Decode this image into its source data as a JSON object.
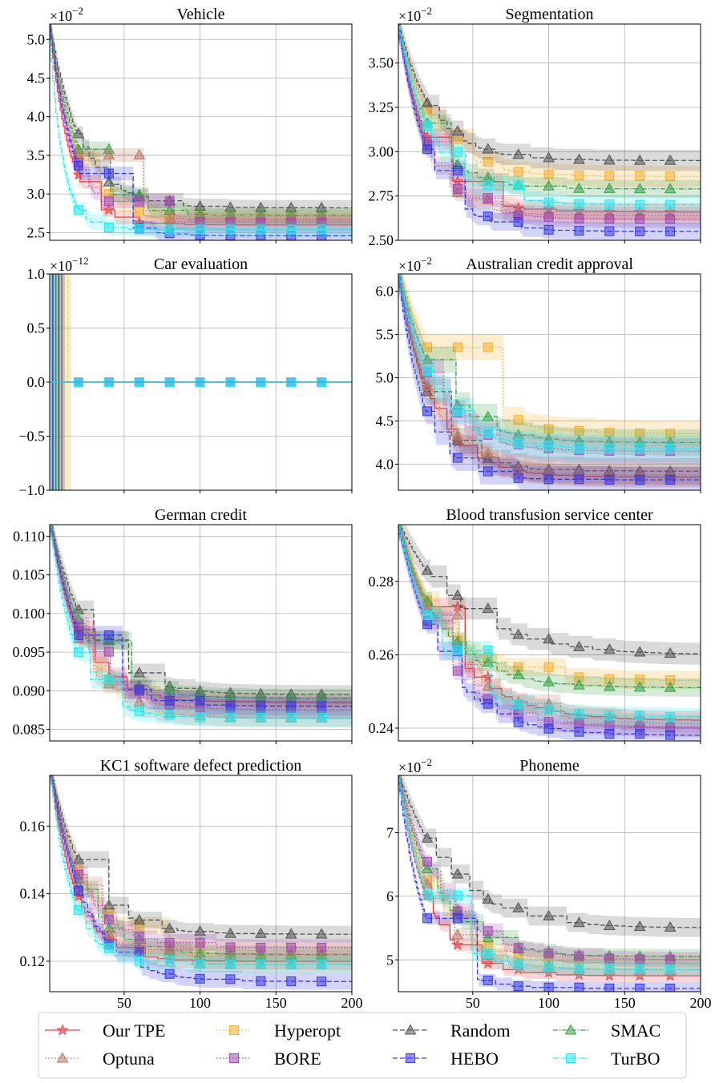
{
  "figure": {
    "legend": [
      {
        "name": "Our TPE",
        "color": "#e8454a",
        "marker": "star",
        "dash": "solid"
      },
      {
        "name": "Hyperopt",
        "color": "#f5b031",
        "marker": "square",
        "dash": "dot"
      },
      {
        "name": "Random",
        "color": "#555555",
        "marker": "triangle",
        "dash": "dash"
      },
      {
        "name": "SMAC",
        "color": "#3ea14a",
        "marker": "triangle",
        "dash": "dashdot"
      },
      {
        "name": "Optuna",
        "color": "#b87a6a",
        "marker": "triangle",
        "dash": "dot"
      },
      {
        "name": "BORE",
        "color": "#a44ab0",
        "marker": "square",
        "dash": "dot"
      },
      {
        "name": "HEBO",
        "color": "#3a3ae0",
        "marker": "square",
        "dash": "dash"
      },
      {
        "name": "TurBO",
        "color": "#28e8ee",
        "marker": "square",
        "dash": "dashdot"
      }
    ],
    "xticks": [
      "50",
      "100",
      "150",
      "200"
    ]
  },
  "chart_data": [
    {
      "type": "line",
      "title": "Vehicle",
      "exponent": "×10",
      "exponent_power": "−2",
      "xlim": [
        1,
        200
      ],
      "ylim": [
        2.4,
        5.2
      ],
      "yticks": [
        2.5,
        3.0,
        3.5,
        4.0,
        4.5,
        5.0
      ],
      "ytick_labels": [
        "2.5",
        "3.0",
        "3.5",
        "4.0",
        "4.5",
        "5.0"
      ],
      "series": [
        {
          "name": "Our TPE",
          "start": 5.3,
          "end": 2.6,
          "k": 0.075,
          "band": 0.09
        },
        {
          "name": "Hyperopt",
          "start": 5.3,
          "end": 2.7,
          "k": 0.06,
          "band": 0.1
        },
        {
          "name": "Random",
          "start": 5.3,
          "end": 2.82,
          "k": 0.05,
          "band": 0.1
        },
        {
          "name": "SMAC",
          "start": 5.3,
          "end": 2.72,
          "k": 0.055,
          "band": 0.1
        },
        {
          "name": "Optuna",
          "start": 5.3,
          "end": 2.66,
          "k": 0.06,
          "band": 0.09
        },
        {
          "name": "BORE",
          "start": 5.3,
          "end": 2.63,
          "k": 0.065,
          "band": 0.09
        },
        {
          "name": "HEBO",
          "start": 5.3,
          "end": 2.46,
          "k": 0.06,
          "band": 0.09
        },
        {
          "name": "TurBO",
          "start": 5.3,
          "end": 2.54,
          "k": 0.12,
          "band": 0.1
        }
      ]
    },
    {
      "type": "line",
      "title": "Segmentation",
      "exponent": "×10",
      "exponent_power": "−2",
      "xlim": [
        1,
        200
      ],
      "ylim": [
        2.5,
        3.72
      ],
      "yticks": [
        2.5,
        2.75,
        3.0,
        3.25,
        3.5
      ],
      "ytick_labels": [
        "2.50",
        "2.75",
        "3.00",
        "3.25",
        "3.50"
      ],
      "series": [
        {
          "name": "Our TPE",
          "start": 3.75,
          "end": 2.66,
          "k": 0.05,
          "band": 0.05
        },
        {
          "name": "Hyperopt",
          "start": 3.75,
          "end": 2.86,
          "k": 0.045,
          "band": 0.06
        },
        {
          "name": "Random",
          "start": 3.75,
          "end": 2.95,
          "k": 0.045,
          "band": 0.06
        },
        {
          "name": "SMAC",
          "start": 3.75,
          "end": 2.79,
          "k": 0.05,
          "band": 0.05
        },
        {
          "name": "Optuna",
          "start": 3.75,
          "end": 2.64,
          "k": 0.055,
          "band": 0.05
        },
        {
          "name": "BORE",
          "start": 3.75,
          "end": 2.62,
          "k": 0.05,
          "band": 0.05
        },
        {
          "name": "HEBO",
          "start": 3.75,
          "end": 2.55,
          "k": 0.05,
          "band": 0.05
        },
        {
          "name": "TurBO",
          "start": 3.75,
          "end": 2.7,
          "k": 0.045,
          "band": 0.05
        }
      ]
    },
    {
      "type": "line",
      "title": "Car evaluation",
      "exponent": "×10",
      "exponent_power": "−12",
      "xlim": [
        1,
        200
      ],
      "ylim": [
        -1.0,
        1.0
      ],
      "yticks": [
        -1.0,
        -0.5,
        0.0,
        0.5,
        1.0
      ],
      "ytick_labels": [
        "−1.0",
        "−0.5",
        "0.0",
        "0.5",
        "1.0"
      ],
      "series": [
        {
          "name": "Our TPE",
          "start": 0,
          "end": 0,
          "k": 1,
          "band": 0
        },
        {
          "name": "Hyperopt",
          "start": 0,
          "end": 0,
          "k": 1,
          "band": 0
        },
        {
          "name": "Random",
          "start": 0,
          "end": 0,
          "k": 1,
          "band": 0
        },
        {
          "name": "SMAC",
          "start": 0,
          "end": 0,
          "k": 1,
          "band": 0
        },
        {
          "name": "Optuna",
          "start": 0,
          "end": 0,
          "k": 1,
          "band": 0
        },
        {
          "name": "BORE",
          "start": 0,
          "end": 0,
          "k": 1,
          "band": 0
        },
        {
          "name": "HEBO",
          "start": 0,
          "end": 0,
          "k": 1,
          "band": 0
        },
        {
          "name": "TurBO",
          "start": 0,
          "end": 0,
          "k": 1,
          "band": 0
        }
      ]
    },
    {
      "type": "line",
      "title": "Australian credit approval",
      "exponent": "×10",
      "exponent_power": "−2",
      "xlim": [
        1,
        200
      ],
      "ylim": [
        3.7,
        6.2
      ],
      "yticks": [
        4.0,
        4.5,
        5.0,
        5.5,
        6.0
      ],
      "ytick_labels": [
        "4.0",
        "4.5",
        "5.0",
        "5.5",
        "6.0"
      ],
      "series": [
        {
          "name": "Our TPE",
          "start": 6.3,
          "end": 3.85,
          "k": 0.045,
          "band": 0.12
        },
        {
          "name": "Hyperopt",
          "start": 6.3,
          "end": 4.35,
          "k": 0.035,
          "band": 0.15
        },
        {
          "name": "Random",
          "start": 6.3,
          "end": 3.92,
          "k": 0.05,
          "band": 0.15
        },
        {
          "name": "SMAC",
          "start": 6.3,
          "end": 4.25,
          "k": 0.04,
          "band": 0.15
        },
        {
          "name": "Optuna",
          "start": 6.3,
          "end": 3.87,
          "k": 0.045,
          "band": 0.12
        },
        {
          "name": "BORE",
          "start": 6.3,
          "end": 4.15,
          "k": 0.045,
          "band": 0.15
        },
        {
          "name": "HEBO",
          "start": 6.3,
          "end": 3.82,
          "k": 0.06,
          "band": 0.15
        },
        {
          "name": "TurBO",
          "start": 6.3,
          "end": 4.18,
          "k": 0.045,
          "band": 0.15
        }
      ]
    },
    {
      "type": "line",
      "title": "German credit",
      "exponent": "",
      "exponent_power": "",
      "xlim": [
        1,
        200
      ],
      "ylim": [
        0.0835,
        0.1115
      ],
      "yticks": [
        0.085,
        0.09,
        0.095,
        0.1,
        0.105,
        0.11
      ],
      "ytick_labels": [
        "0.085",
        "0.090",
        "0.095",
        "0.100",
        "0.105",
        "0.110"
      ],
      "series": [
        {
          "name": "Our TPE",
          "start": 0.113,
          "end": 0.0885,
          "k": 0.05,
          "band": 0.0012
        },
        {
          "name": "Hyperopt",
          "start": 0.113,
          "end": 0.0875,
          "k": 0.05,
          "band": 0.0012
        },
        {
          "name": "Random",
          "start": 0.113,
          "end": 0.0895,
          "k": 0.04,
          "band": 0.0012
        },
        {
          "name": "SMAC",
          "start": 0.113,
          "end": 0.089,
          "k": 0.045,
          "band": 0.0012
        },
        {
          "name": "Optuna",
          "start": 0.113,
          "end": 0.0865,
          "k": 0.05,
          "band": 0.0012
        },
        {
          "name": "BORE",
          "start": 0.113,
          "end": 0.0875,
          "k": 0.045,
          "band": 0.0012
        },
        {
          "name": "HEBO",
          "start": 0.113,
          "end": 0.088,
          "k": 0.05,
          "band": 0.0012
        },
        {
          "name": "TurBO",
          "start": 0.113,
          "end": 0.0865,
          "k": 0.06,
          "band": 0.0012
        }
      ]
    },
    {
      "type": "line",
      "title": "Blood transfusion service center",
      "exponent": "",
      "exponent_power": "",
      "xlim": [
        1,
        200
      ],
      "ylim": [
        0.2365,
        0.2955
      ],
      "yticks": [
        0.24,
        0.26,
        0.28
      ],
      "ytick_labels": [
        "0.24",
        "0.26",
        "0.28"
      ],
      "series": [
        {
          "name": "Our TPE",
          "start": 0.297,
          "end": 0.242,
          "k": 0.03,
          "band": 0.0025
        },
        {
          "name": "Hyperopt",
          "start": 0.297,
          "end": 0.253,
          "k": 0.035,
          "band": 0.0025
        },
        {
          "name": "Random",
          "start": 0.297,
          "end": 0.26,
          "k": 0.025,
          "band": 0.003
        },
        {
          "name": "SMAC",
          "start": 0.297,
          "end": 0.251,
          "k": 0.035,
          "band": 0.0025
        },
        {
          "name": "Optuna",
          "start": 0.297,
          "end": 0.241,
          "k": 0.03,
          "band": 0.0025
        },
        {
          "name": "BORE",
          "start": 0.297,
          "end": 0.24,
          "k": 0.035,
          "band": 0.0025
        },
        {
          "name": "HEBO",
          "start": 0.297,
          "end": 0.238,
          "k": 0.035,
          "band": 0.0025
        },
        {
          "name": "TurBO",
          "start": 0.297,
          "end": 0.243,
          "k": 0.035,
          "band": 0.0025
        }
      ]
    },
    {
      "type": "line",
      "title": "KC1 software defect prediction",
      "exponent": "",
      "exponent_power": "",
      "xlim": [
        1,
        200
      ],
      "ylim": [
        0.111,
        0.175
      ],
      "yticks": [
        0.12,
        0.14,
        0.16
      ],
      "ytick_labels": [
        "0.12",
        "0.14",
        "0.16"
      ],
      "series": [
        {
          "name": "Our TPE",
          "start": 0.18,
          "end": 0.12,
          "k": 0.06,
          "band": 0.0025
        },
        {
          "name": "Hyperopt",
          "start": 0.18,
          "end": 0.123,
          "k": 0.045,
          "band": 0.0025
        },
        {
          "name": "Random",
          "start": 0.18,
          "end": 0.128,
          "k": 0.045,
          "band": 0.0025
        },
        {
          "name": "SMAC",
          "start": 0.18,
          "end": 0.122,
          "k": 0.05,
          "band": 0.0025
        },
        {
          "name": "Optuna",
          "start": 0.18,
          "end": 0.119,
          "k": 0.05,
          "band": 0.0025
        },
        {
          "name": "BORE",
          "start": 0.18,
          "end": 0.124,
          "k": 0.05,
          "band": 0.0025
        },
        {
          "name": "HEBO",
          "start": 0.18,
          "end": 0.114,
          "k": 0.045,
          "band": 0.0025
        },
        {
          "name": "TurBO",
          "start": 0.18,
          "end": 0.119,
          "k": 0.07,
          "band": 0.0025
        }
      ]
    },
    {
      "type": "line",
      "title": "Phoneme",
      "exponent": "×10",
      "exponent_power": "−2",
      "xlim": [
        1,
        200
      ],
      "ylim": [
        4.5,
        7.9
      ],
      "yticks": [
        5,
        6,
        7
      ],
      "ytick_labels": [
        "5",
        "6",
        "7"
      ],
      "series": [
        {
          "name": "Our TPE",
          "start": 8.0,
          "end": 4.75,
          "k": 0.05,
          "band": 0.1
        },
        {
          "name": "Hyperopt",
          "start": 8.0,
          "end": 4.95,
          "k": 0.045,
          "band": 0.12
        },
        {
          "name": "Random",
          "start": 8.0,
          "end": 5.5,
          "k": 0.03,
          "band": 0.15
        },
        {
          "name": "SMAC",
          "start": 8.0,
          "end": 5.05,
          "k": 0.04,
          "band": 0.12
        },
        {
          "name": "Optuna",
          "start": 8.0,
          "end": 4.85,
          "k": 0.045,
          "band": 0.1
        },
        {
          "name": "BORE",
          "start": 8.0,
          "end": 5.0,
          "k": 0.035,
          "band": 0.12
        },
        {
          "name": "HEBO",
          "start": 8.0,
          "end": 4.55,
          "k": 0.06,
          "band": 0.1
        },
        {
          "name": "TurBO",
          "start": 8.0,
          "end": 4.85,
          "k": 0.05,
          "band": 0.12
        }
      ]
    }
  ]
}
